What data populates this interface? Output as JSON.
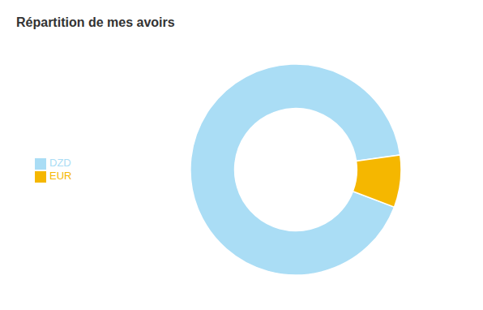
{
  "chart_data": {
    "type": "donut",
    "title": "Répartition de mes avoirs",
    "categories": [
      "DZD",
      "EUR"
    ],
    "values": [
      92.0,
      8.0
    ],
    "colors": [
      "#aaddf5",
      "#f5b700"
    ]
  }
}
